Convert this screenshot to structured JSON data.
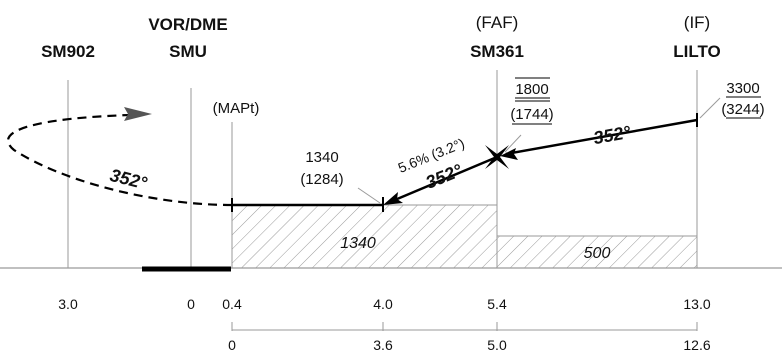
{
  "fixes": {
    "sm902": {
      "name": "SM902"
    },
    "smu": {
      "type": "VOR/DME",
      "name": "SMU"
    },
    "mapt": {
      "type": "(MAPt)"
    },
    "sm361": {
      "type": "(FAF)",
      "name": "SM361"
    },
    "lilto": {
      "type": "(IF)",
      "name": "LILTO"
    }
  },
  "altitudes": {
    "lilto_alt": "3300",
    "lilto_height": "(3244)",
    "faf_alt": "1800",
    "faf_height": "(1744)",
    "step_alt": "1340",
    "step_height": "(1284)"
  },
  "tracks": {
    "intermediate": "352°",
    "final": "352°",
    "missed": "352°"
  },
  "gradient": "5.6% (3.2°)",
  "obstacle_clearance": {
    "final": "1340",
    "intermediate": "500"
  },
  "distance_scale_dme": [
    "3.0",
    "0",
    "0.4",
    "4.0",
    "5.4",
    "13.0"
  ],
  "distance_scale_thr": [
    "0",
    "3.6",
    "5.0",
    "12.6"
  ],
  "colors": {
    "line": "#000000",
    "guide": "#9a9a9a",
    "hatch": "#9a9a9a"
  }
}
